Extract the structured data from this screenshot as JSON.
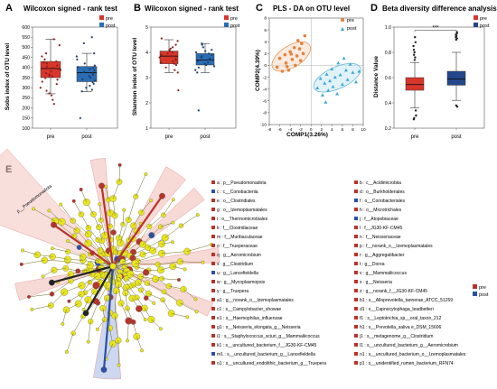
{
  "chart_data": [
    {
      "panel": "A",
      "type": "box",
      "title": "Wilcoxon signed - rank test",
      "ylabel": "Sobs index of OTU level",
      "categories": [
        "pre",
        "post"
      ],
      "ylim": [
        100,
        600
      ],
      "yticks": [
        100,
        150,
        200,
        250,
        300,
        350,
        400,
        450,
        500,
        550,
        600
      ],
      "boxes": [
        {
          "name": "pre",
          "color": "#d9362b",
          "min": 270,
          "q1": 350,
          "median": 395,
          "q3": 430,
          "max": 540,
          "points": [
            540,
            510,
            470,
            455,
            440,
            430,
            425,
            420,
            410,
            405,
            398,
            392,
            388,
            380,
            372,
            365,
            360,
            355,
            348,
            340,
            330,
            318,
            300,
            285,
            272,
            262,
            240,
            220
          ]
        },
        {
          "name": "post",
          "color": "#2a6db3",
          "min": 280,
          "q1": 330,
          "median": 375,
          "q3": 405,
          "max": 470,
          "points": [
            550,
            520,
            470,
            455,
            440,
            420,
            410,
            402,
            398,
            392,
            385,
            378,
            372,
            365,
            358,
            350,
            342,
            335,
            328,
            320,
            310,
            300,
            290,
            282,
            150
          ]
        }
      ],
      "legend": [
        "pre",
        "post"
      ]
    },
    {
      "panel": "B",
      "type": "box",
      "title": "Wilcoxon signed - rank test",
      "ylabel": "Shannon index of OTU level",
      "categories": [
        "pre",
        "post"
      ],
      "ylim": [
        1,
        5
      ],
      "yticks": [
        1,
        2,
        3,
        4,
        5
      ],
      "boxes": [
        {
          "name": "pre",
          "color": "#d9362b",
          "min": 3.2,
          "q1": 3.55,
          "median": 3.85,
          "q3": 4.05,
          "max": 4.5,
          "points": [
            4.55,
            4.45,
            4.3,
            4.2,
            4.15,
            4.1,
            4.05,
            4.0,
            3.95,
            3.9,
            3.85,
            3.8,
            3.75,
            3.7,
            3.65,
            3.6,
            3.55,
            3.5,
            3.4,
            3.3,
            3.2,
            2.5
          ]
        },
        {
          "name": "post",
          "color": "#2a6db3",
          "min": 3.2,
          "q1": 3.5,
          "median": 3.7,
          "q3": 3.95,
          "max": 4.35,
          "points": [
            4.35,
            4.3,
            4.2,
            4.1,
            4.05,
            4.0,
            3.95,
            3.9,
            3.85,
            3.8,
            3.75,
            3.7,
            3.65,
            3.6,
            3.55,
            3.5,
            3.45,
            3.4,
            3.3,
            3.2,
            1.7
          ]
        }
      ],
      "legend": [
        "pre",
        "post"
      ]
    },
    {
      "panel": "C",
      "type": "scatter",
      "title": "PLS - DA on OTU level",
      "xlabel": "COMP1(3.26%)",
      "ylabel": "COMP2(4.39%)",
      "xlim": [
        -8,
        10
      ],
      "ylim": [
        -10,
        8
      ],
      "xticks": [
        -8,
        -6,
        -4,
        -2,
        0,
        2,
        4,
        6,
        8,
        10
      ],
      "yticks": [
        -10,
        -8,
        -6,
        -4,
        -2,
        0,
        2,
        4,
        6,
        8
      ],
      "series": [
        {
          "name": "pre",
          "color": "#e0843f",
          "marker": "circle",
          "points": [
            [
              -6.5,
              -0.3
            ],
            [
              -6,
              1.2
            ],
            [
              -5.5,
              -1.0
            ],
            [
              -5,
              1.8
            ],
            [
              -4.8,
              0.4
            ],
            [
              -4.3,
              -0.8
            ],
            [
              -4,
              2.3
            ],
            [
              -3.6,
              1.0
            ],
            [
              -3.2,
              3.0
            ],
            [
              -3,
              0.0
            ],
            [
              -2.7,
              1.6
            ],
            [
              -2.5,
              4.2
            ],
            [
              -2.2,
              2.8
            ],
            [
              -2,
              0.8
            ],
            [
              -1.8,
              3.7
            ],
            [
              -1.5,
              2.0
            ],
            [
              -1.2,
              5.0
            ],
            [
              -4.6,
              -0.2
            ],
            [
              -3.8,
              1.9
            ]
          ]
        },
        {
          "name": "post",
          "color": "#3fa8d6",
          "marker": "triangle",
          "points": [
            [
              1.2,
              -3.8
            ],
            [
              1.8,
              -2.2
            ],
            [
              2.2,
              -5.0
            ],
            [
              2.6,
              -3.0
            ],
            [
              3,
              -1.5
            ],
            [
              3.3,
              -4.2
            ],
            [
              3.6,
              -2.6
            ],
            [
              4,
              -0.6
            ],
            [
              4.2,
              -3.6
            ],
            [
              4.6,
              -2.0
            ],
            [
              5,
              -4.8
            ],
            [
              5.2,
              0.4
            ],
            [
              5.6,
              -1.6
            ],
            [
              6,
              -3.2
            ],
            [
              6.3,
              1.2
            ],
            [
              6.7,
              -0.8
            ],
            [
              7,
              -2.4
            ],
            [
              7.5,
              0.2
            ],
            [
              8,
              -1.2
            ],
            [
              8.6,
              -2.8
            ],
            [
              9.2,
              -1.0
            ],
            [
              2.8,
              -6.2
            ]
          ]
        }
      ],
      "legend": [
        "pre",
        "post"
      ]
    },
    {
      "panel": "D",
      "type": "box",
      "title": "Beta diversity difference analysis",
      "ylabel": "Distance Value",
      "categories": [
        "pre",
        "post"
      ],
      "ylim": [
        0.2,
        1.0
      ],
      "yticks": [
        0.2,
        0.4,
        0.6,
        0.8,
        1.0
      ],
      "significance": "***",
      "boxes": [
        {
          "name": "pre",
          "color": "#d9362b",
          "min": 0.36,
          "q1": 0.5,
          "median": 0.545,
          "q3": 0.6,
          "max": 0.72,
          "outliers_high": [
            0.74,
            0.76,
            0.78,
            0.8,
            0.82,
            0.85,
            0.88,
            0.92
          ],
          "outliers_low": [
            0.34,
            0.3,
            0.28,
            0.27
          ]
        },
        {
          "name": "post",
          "color": "#24478c",
          "min": 0.42,
          "q1": 0.54,
          "median": 0.59,
          "q3": 0.65,
          "max": 0.8,
          "outliers_high": [
            0.9,
            0.91,
            0.92,
            0.93,
            0.94,
            0.95,
            0.96
          ],
          "outliers_low": [
            0.38,
            0.37
          ]
        }
      ],
      "legend": [
        "pre",
        "post"
      ]
    }
  ],
  "panels": {
    "A": {
      "letter": "A",
      "title": "Wilcoxon signed - rank test",
      "ylabel": "Sobs index of OTU level",
      "x_pre": "pre",
      "x_post": "post"
    },
    "B": {
      "letter": "B",
      "title": "Wilcoxon signed - rank test",
      "ylabel": "Shannon index of OTU level",
      "x_pre": "pre",
      "x_post": "post"
    },
    "C": {
      "letter": "C",
      "title": "PLS - DA on OTU level",
      "xlabel": "COMP1(3.26%)",
      "ylabel": "COMP2(4.39%)"
    },
    "D": {
      "letter": "D",
      "title": "Beta diversity difference analysis",
      "ylabel": "Distance Value",
      "sig": "***",
      "x_pre": "pre",
      "x_post": "post"
    },
    "E": {
      "letter": "E",
      "rotated_label": "p__Pseudomonadota"
    }
  },
  "legend_labels": {
    "pre": "pre",
    "post": "post"
  },
  "colors": {
    "pre_red": "#d9362b",
    "post_blue": "#2a6db3",
    "post_navy": "#24478c",
    "pls_pre": "#e0843f",
    "pls_post": "#3fa8d6",
    "node_yellow": "#e8e41d",
    "node_red": "#b8332b",
    "node_blue": "#2b4fa8",
    "highlight_pink": "#f2c4c0"
  },
  "cladogram_legend_left": [
    {
      "text": "a : p__Pseudomonadota",
      "group": "pre"
    },
    {
      "text": "c : c__Coriobacteriia",
      "group": "post"
    },
    {
      "text": "e : o__Clostridiales",
      "group": "pre"
    },
    {
      "text": "g : o__Izemoplasmatales",
      "group": "pre"
    },
    {
      "text": "i : o__Thermomicrobiales",
      "group": "pre"
    },
    {
      "text": "k : f__Clostridiaceae",
      "group": "pre"
    },
    {
      "text": "m : f__Muribaculaceae",
      "group": "pre"
    },
    {
      "text": "o : f__Trueperaceae",
      "group": "pre"
    },
    {
      "text": "q : g__Aeromicrobium",
      "group": "pre"
    },
    {
      "text": "s : g__Clostridium",
      "group": "pre"
    },
    {
      "text": "u : g__Lancefieldella",
      "group": "post"
    },
    {
      "text": "w : g__Mycoplasmopsis",
      "group": "pre"
    },
    {
      "text": "y : g__Truepera",
      "group": "pre"
    },
    {
      "text": "a1 : g__norank_o__Izemoplasmatales",
      "group": "pre"
    },
    {
      "text": "c1 : s__Campylobacter_showae",
      "group": "pre"
    },
    {
      "text": "e1 : s__Haemophilus_influenzae",
      "group": "pre"
    },
    {
      "text": "g1 : s__Neisseria_elongata_g__Neisseria",
      "group": "pre"
    },
    {
      "text": "i1 : s__Staphylococcus_sciuri_g__Mammaliicoccus",
      "group": "pre"
    },
    {
      "text": "k1 : s__uncultured_bacterium_f__JG30-KF-CM45",
      "group": "pre"
    },
    {
      "text": "m1 : s__uncultured_bacterium_g__Lancefieldella",
      "group": "post"
    },
    {
      "text": "o1 : s__uncultured_endolithic_bacterium_g__Truepera",
      "group": "pre"
    }
  ],
  "cladogram_legend_right": [
    {
      "text": "b : c__Acidimicrobiia",
      "group": "pre"
    },
    {
      "text": "d : o__Burkholderiales",
      "group": "pre"
    },
    {
      "text": "f : o__Coriobacteriales",
      "group": "post"
    },
    {
      "text": "h : o__Microtrichales",
      "group": "pre"
    },
    {
      "text": "j : f__Atopobiaceae",
      "group": "post"
    },
    {
      "text": "l : f__JG30-KF-CM45",
      "group": "pre"
    },
    {
      "text": "n : f__Neisseriaceae",
      "group": "pre"
    },
    {
      "text": "p : f__norank_o__Izemoplasmatales",
      "group": "pre"
    },
    {
      "text": "r : g__Aggregatibacter",
      "group": "pre"
    },
    {
      "text": "t : g__Dorea",
      "group": "pre"
    },
    {
      "text": "v : g__Mammaliicoccus",
      "group": "pre"
    },
    {
      "text": "x : g__Neisseria",
      "group": "pre"
    },
    {
      "text": "z : g__norank_f__JG30-KF-CM45",
      "group": "pre"
    },
    {
      "text": "b1 : s__Alloprevotella_tannerae_ATCC_51259",
      "group": "pre"
    },
    {
      "text": "d1 : s__Capnocytophaga_leadbetteri",
      "group": "pre"
    },
    {
      "text": "f1 : s__Leptotrichia_sp__oral_taxon_212",
      "group": "pre"
    },
    {
      "text": "h1 : s__Prevotella_saliva e_DSM_15606",
      "group": "pre"
    },
    {
      "text": "j1 : s__metagenome_g__Clostridium",
      "group": "pre"
    },
    {
      "text": "l1 : s__uncultured_bacterium_g__Aeromicrobium",
      "group": "pre"
    },
    {
      "text": "n1 : s__uncultured_bacterium_o__Izemoplasmatales",
      "group": "pre"
    },
    {
      "text": "p1 : s__unidentified_rumen_bacterium_RFN74",
      "group": "pre"
    }
  ]
}
